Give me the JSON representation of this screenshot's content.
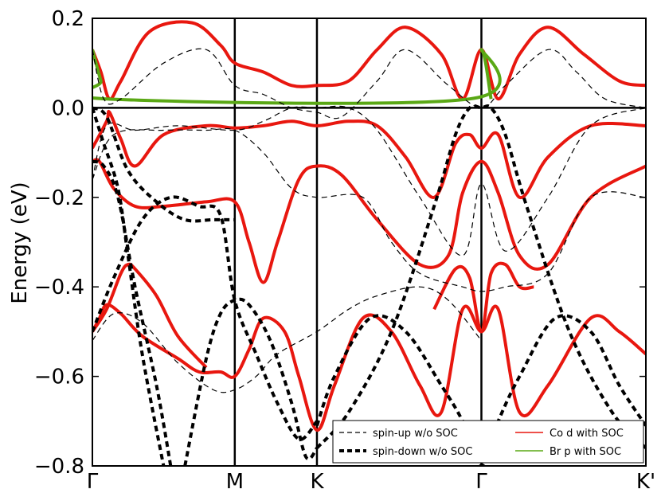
{
  "chart_data": {
    "type": "line",
    "ylabel": "Energy (eV)",
    "ylim": [
      -0.8,
      0.2
    ],
    "y_ticks": [
      "0.2",
      "0.0",
      "−0.2",
      "−0.4",
      "−0.6",
      "−0.8"
    ],
    "y_tick_values": [
      0.2,
      0.0,
      -0.2,
      -0.4,
      -0.6,
      -0.8
    ],
    "k_points": [
      {
        "label": "Γ",
        "k": 0.0
      },
      {
        "label": "M",
        "k": 1.0
      },
      {
        "label": "K",
        "k": 1.577
      },
      {
        "label": "Γ",
        "k": 2.732
      },
      {
        "label": "K'",
        "k": 3.887
      }
    ],
    "fermi_level": 0.0,
    "legend": {
      "position": "lower-right",
      "entries": [
        {
          "label": "spin-up w/o SOC",
          "style": "thin-dashed",
          "color": "#000000"
        },
        {
          "label": "spin-down w/o SOC",
          "style": "thick-dashed",
          "color": "#000000"
        },
        {
          "label": "Co d with SOC",
          "style": "solid",
          "color": "#e8170f"
        },
        {
          "label": "Br p with SOC",
          "style": "solid",
          "color": "#5aa815"
        }
      ]
    },
    "series": [
      {
        "group": "spin-up w/o SOC",
        "x": [
          0.0,
          0.08,
          0.2,
          0.5,
          0.8,
          1.0,
          1.2,
          1.4,
          1.577,
          1.75,
          2.0,
          2.2,
          2.5,
          2.732,
          2.9,
          3.2,
          3.4,
          3.6,
          3.887
        ],
        "y": [
          0.13,
          0.02,
          0.02,
          0.1,
          0.13,
          0.05,
          0.03,
          0.0,
          -0.01,
          -0.02,
          0.06,
          0.13,
          0.05,
          0.0,
          0.05,
          0.13,
          0.08,
          0.02,
          0.0
        ]
      },
      {
        "group": "spin-up w/o SOC",
        "x": [
          0.0,
          0.1,
          0.3,
          0.6,
          1.0,
          1.2,
          1.4,
          1.577,
          1.8,
          2.0,
          2.3,
          2.6,
          2.732,
          2.9,
          3.2,
          3.5,
          3.887
        ],
        "y": [
          -0.16,
          -0.04,
          -0.05,
          -0.04,
          -0.05,
          -0.03,
          0.0,
          0.0,
          0.0,
          -0.05,
          -0.2,
          -0.33,
          -0.17,
          -0.32,
          -0.2,
          -0.04,
          0.0
        ]
      },
      {
        "group": "spin-up w/o SOC",
        "x": [
          0.0,
          0.15,
          0.5,
          0.8,
          1.0,
          1.2,
          1.4,
          1.577,
          1.9,
          2.1,
          2.3,
          2.6,
          2.732,
          2.9,
          3.2,
          3.5,
          3.887
        ],
        "y": [
          -0.16,
          -0.06,
          -0.05,
          -0.05,
          -0.05,
          -0.1,
          -0.18,
          -0.2,
          -0.2,
          -0.3,
          -0.37,
          -0.4,
          -0.41,
          -0.4,
          -0.37,
          -0.2,
          -0.2
        ]
      },
      {
        "group": "spin-up w/o SOC",
        "x": [
          0.0,
          0.15,
          0.35,
          0.6,
          0.85,
          1.0,
          1.15,
          1.3,
          1.577,
          1.8,
          2.0,
          2.3,
          2.5,
          2.732
        ],
        "y": [
          -0.52,
          -0.46,
          -0.48,
          -0.57,
          -0.63,
          -0.63,
          -0.6,
          -0.55,
          -0.5,
          -0.45,
          -0.42,
          -0.4,
          -0.43,
          -0.52
        ]
      },
      {
        "group": "spin-down w/o SOC",
        "x": [
          0.0,
          0.1,
          0.25,
          0.45,
          0.65,
          0.85,
          1.0
        ],
        "y": [
          0.0,
          -0.02,
          -0.14,
          -0.21,
          -0.25,
          -0.25,
          -0.25
        ]
      },
      {
        "group": "spin-down w/o SOC",
        "x": [
          0.0,
          0.08,
          0.18,
          0.25,
          0.35,
          0.5
        ],
        "y": [
          0.0,
          -0.08,
          -0.18,
          -0.33,
          -0.55,
          -0.8
        ]
      },
      {
        "group": "spin-down w/o SOC",
        "x": [
          0.0,
          0.08,
          0.18,
          0.3,
          0.45,
          0.55
        ],
        "y": [
          -0.12,
          -0.13,
          -0.2,
          -0.4,
          -0.62,
          -0.8
        ]
      },
      {
        "group": "spin-down w/o SOC",
        "x": [
          0.0,
          0.15,
          0.35,
          0.55,
          0.75,
          0.9,
          1.0,
          1.15,
          1.3,
          1.45,
          1.577
        ],
        "y": [
          -0.5,
          -0.38,
          -0.25,
          -0.2,
          -0.22,
          -0.24,
          -0.43,
          -0.55,
          -0.66,
          -0.74,
          -0.7
        ]
      },
      {
        "group": "spin-down w/o SOC",
        "x": [
          0.65,
          0.8,
          0.9,
          1.0,
          1.1,
          1.25,
          1.4,
          1.5,
          1.577
        ],
        "y": [
          -0.8,
          -0.56,
          -0.46,
          -0.43,
          -0.44,
          -0.52,
          -0.66,
          -0.78,
          -0.76
        ]
      },
      {
        "group": "spin-down w/o SOC",
        "x": [
          1.577,
          1.7,
          1.95,
          2.2,
          2.45,
          2.6,
          2.732,
          2.85,
          3.0,
          3.25,
          3.5,
          3.7,
          3.887
        ],
        "y": [
          -0.71,
          -0.6,
          -0.47,
          -0.5,
          -0.62,
          -0.7,
          -0.8,
          -0.7,
          -0.6,
          -0.47,
          -0.5,
          -0.62,
          -0.71
        ]
      },
      {
        "group": "spin-down w/o SOC",
        "x": [
          1.577,
          1.8,
          2.1,
          2.4,
          2.55,
          2.65,
          2.732,
          2.8,
          2.9,
          3.05,
          3.35,
          3.65,
          3.887
        ],
        "y": [
          -0.76,
          -0.68,
          -0.5,
          -0.22,
          -0.06,
          0.0,
          0.0,
          0.0,
          -0.06,
          -0.22,
          -0.5,
          -0.68,
          -0.76
        ]
      },
      {
        "group": "Co d with SOC",
        "x": [
          0.0,
          0.06,
          0.12,
          0.2,
          0.4,
          0.7,
          0.9,
          1.0,
          1.2,
          1.4,
          1.577,
          1.8,
          2.0,
          2.2,
          2.45,
          2.6,
          2.732,
          2.85,
          3.0,
          3.2,
          3.45,
          3.7,
          3.887
        ],
        "y": [
          0.13,
          0.08,
          0.02,
          0.06,
          0.17,
          0.19,
          0.14,
          0.1,
          0.08,
          0.05,
          0.05,
          0.06,
          0.13,
          0.18,
          0.12,
          0.02,
          0.13,
          0.02,
          0.12,
          0.18,
          0.12,
          0.06,
          0.05
        ]
      },
      {
        "group": "Co d with SOC",
        "x": [
          0.0,
          0.1,
          0.12,
          0.2,
          0.3,
          0.5,
          0.8,
          1.0,
          1.2,
          1.4,
          1.577,
          1.8,
          2.0,
          2.2,
          2.4,
          2.55,
          2.65,
          2.732,
          2.85,
          3.0,
          3.2,
          3.5,
          3.887
        ],
        "y": [
          -0.09,
          -0.03,
          -0.01,
          -0.07,
          -0.13,
          -0.06,
          -0.04,
          -0.045,
          -0.04,
          -0.03,
          -0.04,
          -0.03,
          -0.04,
          -0.11,
          -0.2,
          -0.08,
          -0.06,
          -0.09,
          -0.06,
          -0.2,
          -0.11,
          -0.04,
          -0.04
        ]
      },
      {
        "group": "Co d with SOC",
        "x": [
          0.0,
          0.05,
          0.15,
          0.3,
          0.5,
          0.8,
          1.0,
          1.1,
          1.2,
          1.3,
          1.45,
          1.577,
          1.75,
          2.0,
          2.3,
          2.5,
          2.6,
          2.732,
          2.85,
          3.0,
          3.2,
          3.5,
          3.887
        ],
        "y": [
          -0.12,
          -0.12,
          -0.18,
          -0.22,
          -0.22,
          -0.21,
          -0.21,
          -0.3,
          -0.39,
          -0.3,
          -0.16,
          -0.13,
          -0.15,
          -0.25,
          -0.35,
          -0.33,
          -0.19,
          -0.12,
          -0.19,
          -0.33,
          -0.35,
          -0.2,
          -0.13
        ]
      },
      {
        "group": "Co d with SOC",
        "x": [
          0.0,
          0.05,
          0.1,
          0.2,
          0.35,
          0.6,
          0.75,
          0.9,
          1.0,
          1.1,
          1.2,
          1.35,
          1.45,
          1.577,
          1.7,
          1.9,
          2.1,
          2.3,
          2.45,
          2.6,
          2.732,
          2.85,
          3.0,
          3.2,
          3.5,
          3.7,
          3.887
        ],
        "y": [
          -0.5,
          -0.47,
          -0.44,
          -0.46,
          -0.51,
          -0.56,
          -0.59,
          -0.59,
          -0.6,
          -0.54,
          -0.47,
          -0.5,
          -0.6,
          -0.72,
          -0.62,
          -0.47,
          -0.5,
          -0.62,
          -0.68,
          -0.45,
          -0.5,
          -0.45,
          -0.68,
          -0.62,
          -0.47,
          -0.5,
          -0.55
        ]
      },
      {
        "group": "Co d with SOC",
        "x": [
          0.0,
          0.1,
          0.2,
          0.25,
          0.3,
          0.45,
          0.6,
          0.8
        ],
        "y": [
          -0.5,
          -0.45,
          -0.37,
          -0.35,
          -0.36,
          -0.42,
          -0.51,
          -0.58
        ]
      },
      {
        "group": "Co d with SOC",
        "x": [
          2.4,
          2.55,
          2.65,
          2.732,
          2.8,
          2.9,
          3.0,
          3.1
        ],
        "y": [
          -0.45,
          -0.36,
          -0.38,
          -0.5,
          -0.37,
          -0.35,
          -0.4,
          -0.4
        ]
      },
      {
        "group": "Br p with SOC",
        "x": [
          0.0,
          0.06,
          0.1,
          2.65,
          2.732,
          2.8
        ],
        "y": [
          0.13,
          0.06,
          0.02,
          0.02,
          0.13,
          0.02
        ]
      }
    ]
  }
}
